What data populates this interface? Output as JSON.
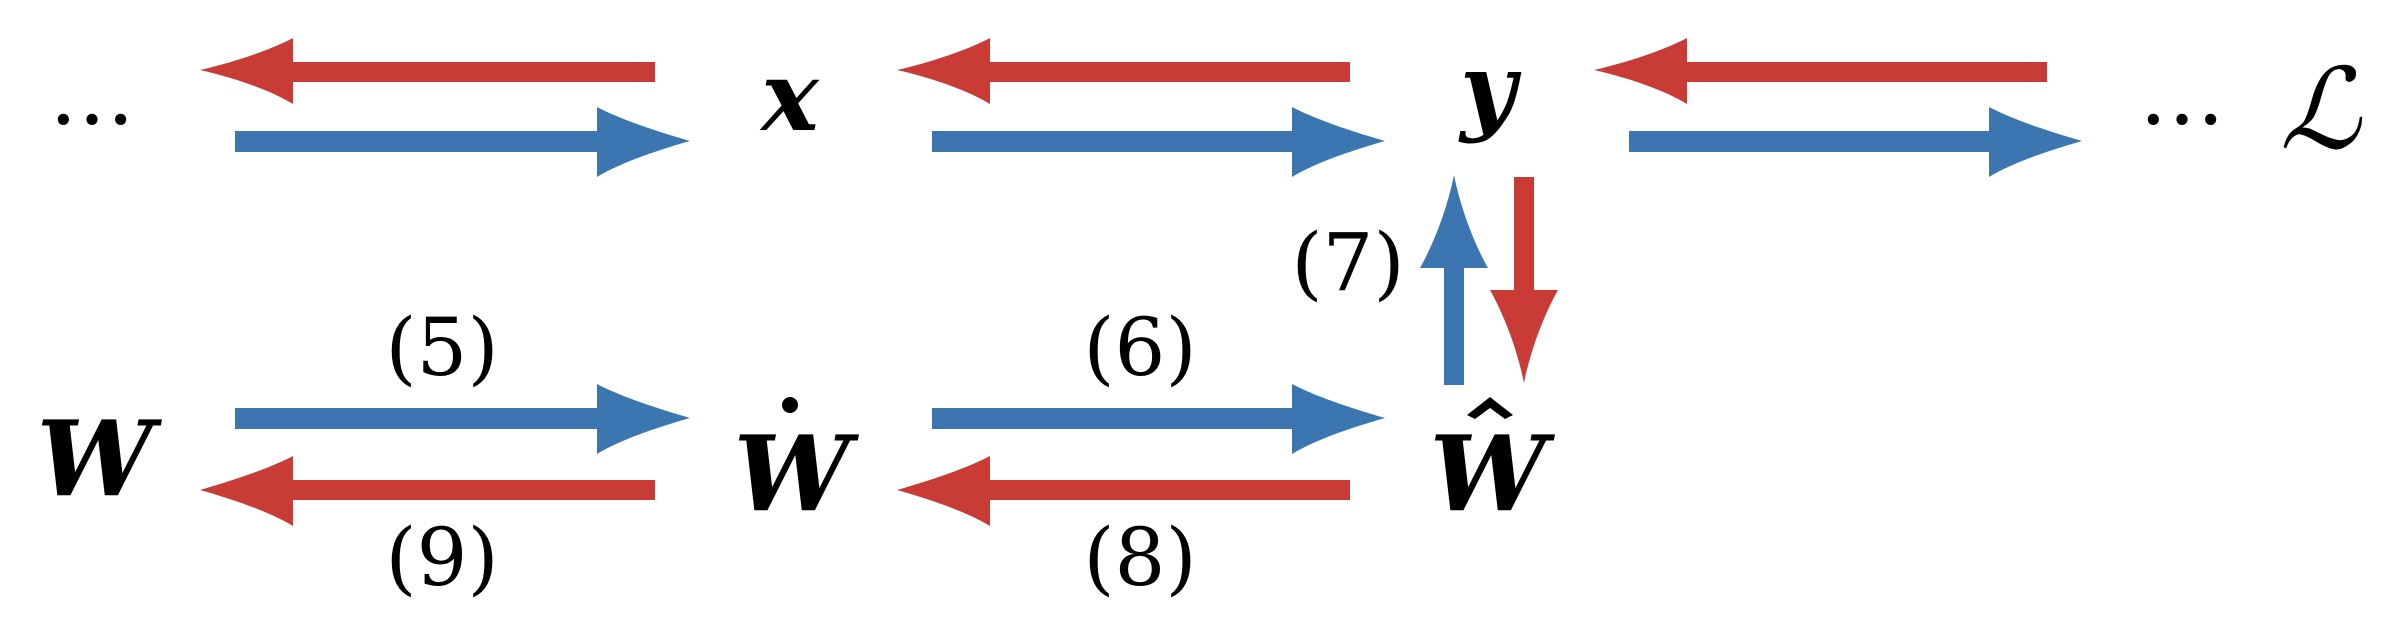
{
  "colors": {
    "red": "#C93B35",
    "blue": "#3B76B0",
    "text": "#000000"
  },
  "nodes": {
    "ellipsis_left": "…",
    "x": "x",
    "y": "y",
    "ellipsis_right": "…",
    "loss": "ℒ",
    "W": "W",
    "W_dot": "W",
    "W_hat": "W"
  },
  "edge_labels": {
    "eq5": "(5)",
    "eq6": "(6)",
    "eq7": "(7)",
    "eq8": "(8)",
    "eq9": "(9)"
  }
}
